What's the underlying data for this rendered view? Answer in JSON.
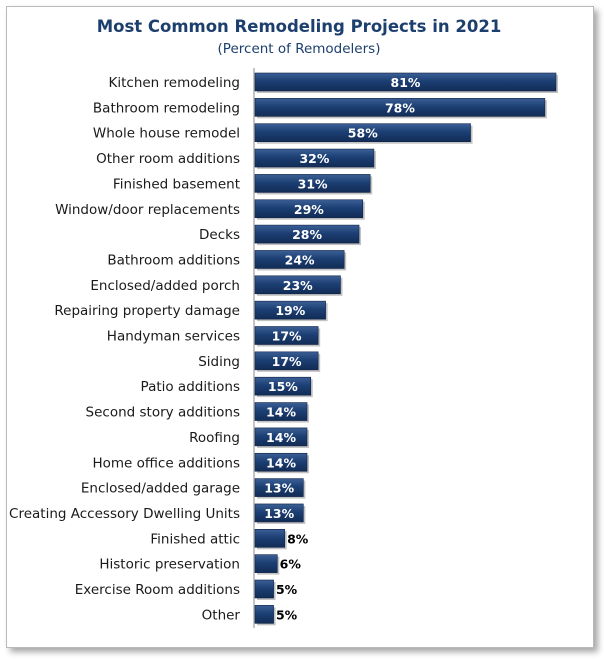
{
  "chart_data": {
    "type": "bar",
    "orientation": "horizontal",
    "title": "Most Common Remodeling Projects in 2021",
    "subtitle": "(Percent of Remodelers)",
    "xlabel": "",
    "ylabel": "",
    "xlim": [
      0,
      81
    ],
    "grid": false,
    "legend": "none",
    "bar_color": "#1c3f74",
    "label_color_inside": "#ffffff",
    "label_color_outside": "#000000",
    "categories": [
      "Kitchen remodeling",
      "Bathroom remodeling",
      "Whole house remodel",
      "Other room additions",
      "Finished basement",
      "Window/door replacements",
      "Decks",
      "Bathroom additions",
      "Enclosed/added porch",
      "Repairing property damage",
      "Handyman services",
      "Siding",
      "Patio additions",
      "Second story additions",
      "Roofing",
      "Home office additions",
      "Enclosed/added garage",
      "Creating Accessory Dwelling Units",
      "Finished attic",
      "Historic preservation",
      "Exercise Room additions",
      "Other"
    ],
    "values": [
      81,
      78,
      58,
      32,
      31,
      29,
      28,
      24,
      23,
      19,
      17,
      17,
      15,
      14,
      14,
      14,
      13,
      13,
      8,
      6,
      5,
      5
    ],
    "data_labels": [
      "81%",
      "78%",
      "58%",
      "32%",
      "31%",
      "29%",
      "28%",
      "24%",
      "23%",
      "19%",
      "17%",
      "17%",
      "15%",
      "14%",
      "14%",
      "14%",
      "13%",
      "13%",
      "8%",
      "6%",
      "5%",
      "5%"
    ]
  }
}
